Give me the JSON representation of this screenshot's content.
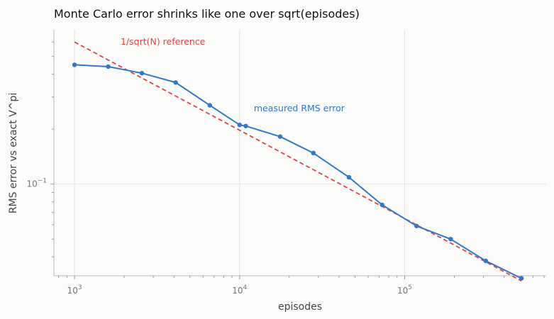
{
  "chart_data": {
    "type": "line",
    "title": "Monte Carlo error shrinks like one over sqrt(episodes)",
    "xlabel": "episodes",
    "ylabel": "RMS error vs exact V^pi",
    "xscale": "log",
    "yscale": "log",
    "xlim": [
      750,
      720000
    ],
    "ylim": [
      0.0315,
      0.7
    ],
    "grid": "major gridlines on",
    "x_ticks": [
      {
        "value": 1000,
        "base": "10",
        "exp": "3"
      },
      {
        "value": 10000,
        "base": "10",
        "exp": "4"
      },
      {
        "value": 100000,
        "base": "10",
        "exp": "5"
      }
    ],
    "y_ticks": [
      {
        "value": 0.1,
        "base": "10",
        "exp": "−1"
      }
    ],
    "series": [
      {
        "name": "measured RMS error",
        "style": "solid-with-markers",
        "color": "#2f78d0",
        "x": [
          1000,
          1600,
          2560,
          4100,
          6600,
          10000,
          10900,
          17600,
          28000,
          46000,
          73000,
          118000,
          190000,
          310000,
          510000
        ],
        "y": [
          0.45,
          0.44,
          0.405,
          0.36,
          0.27,
          0.211,
          0.208,
          0.182,
          0.148,
          0.109,
          0.077,
          0.059,
          0.05,
          0.038,
          0.0305
        ]
      },
      {
        "name": "1/sqrt(N) reference",
        "style": "dashed",
        "color": "#e04444",
        "x": [
          1000,
          510000
        ],
        "y": [
          0.6,
          0.0295
        ]
      }
    ],
    "annotations": [
      {
        "text": "1/sqrt(N) reference",
        "series": 1,
        "x": 1900,
        "y": 0.58
      },
      {
        "text": "measured RMS error",
        "series": 0,
        "x": 12200,
        "y": 0.25
      }
    ]
  }
}
